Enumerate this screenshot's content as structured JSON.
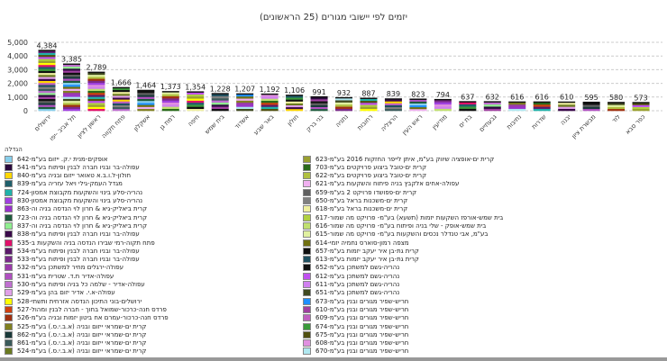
{
  "chart_data": {
    "type": "bar",
    "stacked": true,
    "title": "יזמים לפי יישובי מגורים (25 הראשונים)",
    "xlabel": "",
    "ylabel": "",
    "ylim": [
      0,
      5000
    ],
    "yticks": [
      "0",
      "1,000",
      "2,000",
      "3,000",
      "4,000",
      "5,000"
    ],
    "grid": true,
    "categories": [
      "ירושלים",
      "תל אביב -יפו",
      "ראשון לציון",
      "פתח תקווה",
      "אשקלון",
      "רמת גן",
      "חיפה",
      "בית שמש",
      "אשדוד",
      "באר שבע",
      "חולון",
      "בני ברק",
      "נתניה",
      "רחובות",
      "הרצליה",
      "ראש העין",
      "מודיעין",
      "בת ים",
      "גבעתיים",
      "נתיבות",
      "שדרות",
      "יבנה",
      "מבשרת ציון",
      "לוד",
      "כפר סבא"
    ],
    "values": [
      4384,
      3385,
      2789,
      1666,
      1464,
      1373,
      1354,
      1228,
      1207,
      1192,
      1106,
      991,
      932,
      887,
      839,
      823,
      794,
      637,
      632,
      616,
      616,
      610,
      595,
      580,
      573
    ],
    "data_labels": [
      "4,384",
      "3,385",
      "2,789",
      "1,666",
      "1,464",
      "1,373",
      "1,354",
      "1,228",
      "1,207",
      "1,192",
      "1,106",
      "991",
      "932",
      "887",
      "839",
      "823",
      "794",
      "637",
      "632",
      "616",
      "616",
      "610",
      "595",
      "580",
      "573"
    ],
    "legend_placement": "bottom",
    "legend_title": "הגדלה",
    "legend": [
      {
        "name": "אופקים-מנית י.ק. ייזום בע\"מ-642",
        "color": "#87ceeb"
      },
      {
        "name": "עפולה-בר ובניו חברה לבנין ופיתוח בע\"מ-541",
        "color": "#2b0a3d"
      },
      {
        "name": "חולון-ל.ו.ב.א טאואר ייזום ובניה בע\"מ-840",
        "color": "#ffd700"
      },
      {
        "name": "מגדל העמק-גילי ויאל עזריה בע\"מ-839",
        "color": "#1f5f6b"
      },
      {
        "name": "נהריה-סלע בינוי והשקעות מקבוצת אמסון-724",
        "color": "#20b2aa"
      },
      {
        "name": "נהריה-סלע בינוי והשקעות מקבוצת אמסון-830",
        "color": "#a040e0"
      },
      {
        "name": "קרית ביאליק-גיא & חרון לוי הנדסה בניה וה-863",
        "color": "#9932cc"
      },
      {
        "name": "קרית ביאליק-גיא & חרון לוי הנדסה בניה וה-723",
        "color": "#1e5b3c"
      },
      {
        "name": "קרית ביאליק-גיא & חרון לוי הנדסה בניה וה-837",
        "color": "#90ee90"
      },
      {
        "name": "עפולה-בר ובניו חברה לבנין ופיתוח בע\"מ-838",
        "color": "#3a0a4a"
      },
      {
        "name": "פתח תקוה-רמי שבירו הנדסה בניה והשקעות ב-535",
        "color": "#e0106a"
      },
      {
        "name": "עפולה-בר ובניו חברה לבנין ופיתוח בע\"מ-534",
        "color": "#5a1a6a"
      },
      {
        "name": "עפולה-בר ובניו חברה לבנין ופיתוח בע\"מ-533",
        "color": "#7a2a8a"
      },
      {
        "name": "עפולה-ירגלים מחיר למשתכן בע\"מ-532",
        "color": "#9a3aaa"
      },
      {
        "name": "עפולה-אדיר ת.ד. שטרית בע\"מ-531",
        "color": "#b050c0"
      },
      {
        "name": "עפולה-אדיר - שלמה כל בניה ופיתוח בע\"מ-530",
        "color": "#c070d0"
      },
      {
        "name": "עפולה-א.י. אדיר יזום בהן בע\"מ-529",
        "color": "#e0a0e8"
      },
      {
        "name": "ירושלים-בוני התיכון הנדסה אזרחית ותשתי-528",
        "color": "#ffff00"
      },
      {
        "name": "פרדס חנה-כרכור-שמואל בחוך - חברה לבנין ומהול-527",
        "color": "#d04010"
      },
      {
        "name": "פרדס חנה-כרכור-עמרם אח ביטון יזמות ובניה בע\"מ-526",
        "color": "#a03010"
      },
      {
        "name": "קרית ים-שמראי ייזום ובניה (א.ב.י.ס.) בע\"מ-525",
        "color": "#808020"
      },
      {
        "name": "קרית ים-שמראי ייזום ובניה (א.ב.י.ס.) בע\"מ-862",
        "color": "#1a3a3a"
      },
      {
        "name": "קרית ים-שמראי ייזום ובניה (א.ב.י.ס.) בע\"מ-861",
        "color": "#3a5a5a"
      },
      {
        "name": "קרית ים-שמראי ייזום ובניה (א.ב.י.ס.) בע\"מ-524",
        "color": "#6a7a20"
      },
      {
        "name": "קרית ים-אופציה שיווק בע\"מ, איתן לייפר החזקות 2016 בע\"מ-623",
        "color": "#9aa030"
      },
      {
        "name": "קרית ים-טובל ביצוע פרויקטים בע\"מ-703",
        "color": "#2a6a1a"
      },
      {
        "name": "קרית ים-טובל ביצוע פרויקטים בע\"מ-622",
        "color": "#b0c040"
      },
      {
        "name": "עפולה-אחים אלקבץ בניה פיתוח והשקעות בע\"מ-621",
        "color": "#f0b0f0"
      },
      {
        "name": "קרית ים-פפושדו פרויקט 2 בע\"מ-659",
        "color": "#606060"
      },
      {
        "name": "קרית ים-משכנות בראל בע\"מ-650",
        "color": "#808080"
      },
      {
        "name": "קרית ים-משכנות בראל בע\"מ-618",
        "color": "#f0f0a0"
      },
      {
        "name": "בית שמש-אורפז השקעות יזמות (תשעא) בע\"מ- פרויקט מה שמור-617",
        "color": "#b0d040"
      },
      {
        "name": "בית שמש-אופק - שלי בניה ופיתוח בע\"מ- פרויקט מה שמור-616",
        "color": "#c0e070"
      },
      {
        "name": "בע\"מ, אבי טנדלר נכסים והשקעות בע\"מ- פרויקט מה שמור-615",
        "color": "#e0f0a0"
      },
      {
        "name": "מצפה רמון-סוארס נחמיה יזמי-614",
        "color": "#707010"
      },
      {
        "name": "קרית גת-בן איר יעקב יזמות בע\"מ-657",
        "color": "#101010"
      },
      {
        "name": "קרית גת-בן איר יעקב יזמות בע\"מ-613",
        "color": "#1f5060"
      },
      {
        "name": "נהריה-גשם למשתכן בע\"מ-652",
        "color": "#101010"
      },
      {
        "name": "נהריה-גשם למשתכן בע\"מ-612",
        "color": "#c050f0"
      },
      {
        "name": "נהריה-גשם למשתכן בע\"מ-611",
        "color": "#d080f0"
      },
      {
        "name": "נהריה-גשם למשתכן בע\"מ-651",
        "color": "#404a20"
      },
      {
        "name": "חריש-שפיר מגורים ובנין בע\"מ-673",
        "color": "#1e90ff"
      },
      {
        "name": "חריש-שפיר מגורים ובנין בע\"מ-610",
        "color": "#a040a0"
      },
      {
        "name": "חריש-שפיר מגורים ובנין בע\"מ-609",
        "color": "#c060c0"
      },
      {
        "name": "חריש-שפיר מגורים ובנין בע\"מ-674",
        "color": "#3a9a3a"
      },
      {
        "name": "חריש-שפיר מגורים ובנין בע\"מ-675",
        "color": "#505010"
      },
      {
        "name": "חריש-שפיר מגורים ובנין בע\"מ-608",
        "color": "#e090e0"
      },
      {
        "name": "חריש-שפיר מגורים ובנין בע\"מ-670",
        "color": "#b0e8f0"
      }
    ]
  }
}
